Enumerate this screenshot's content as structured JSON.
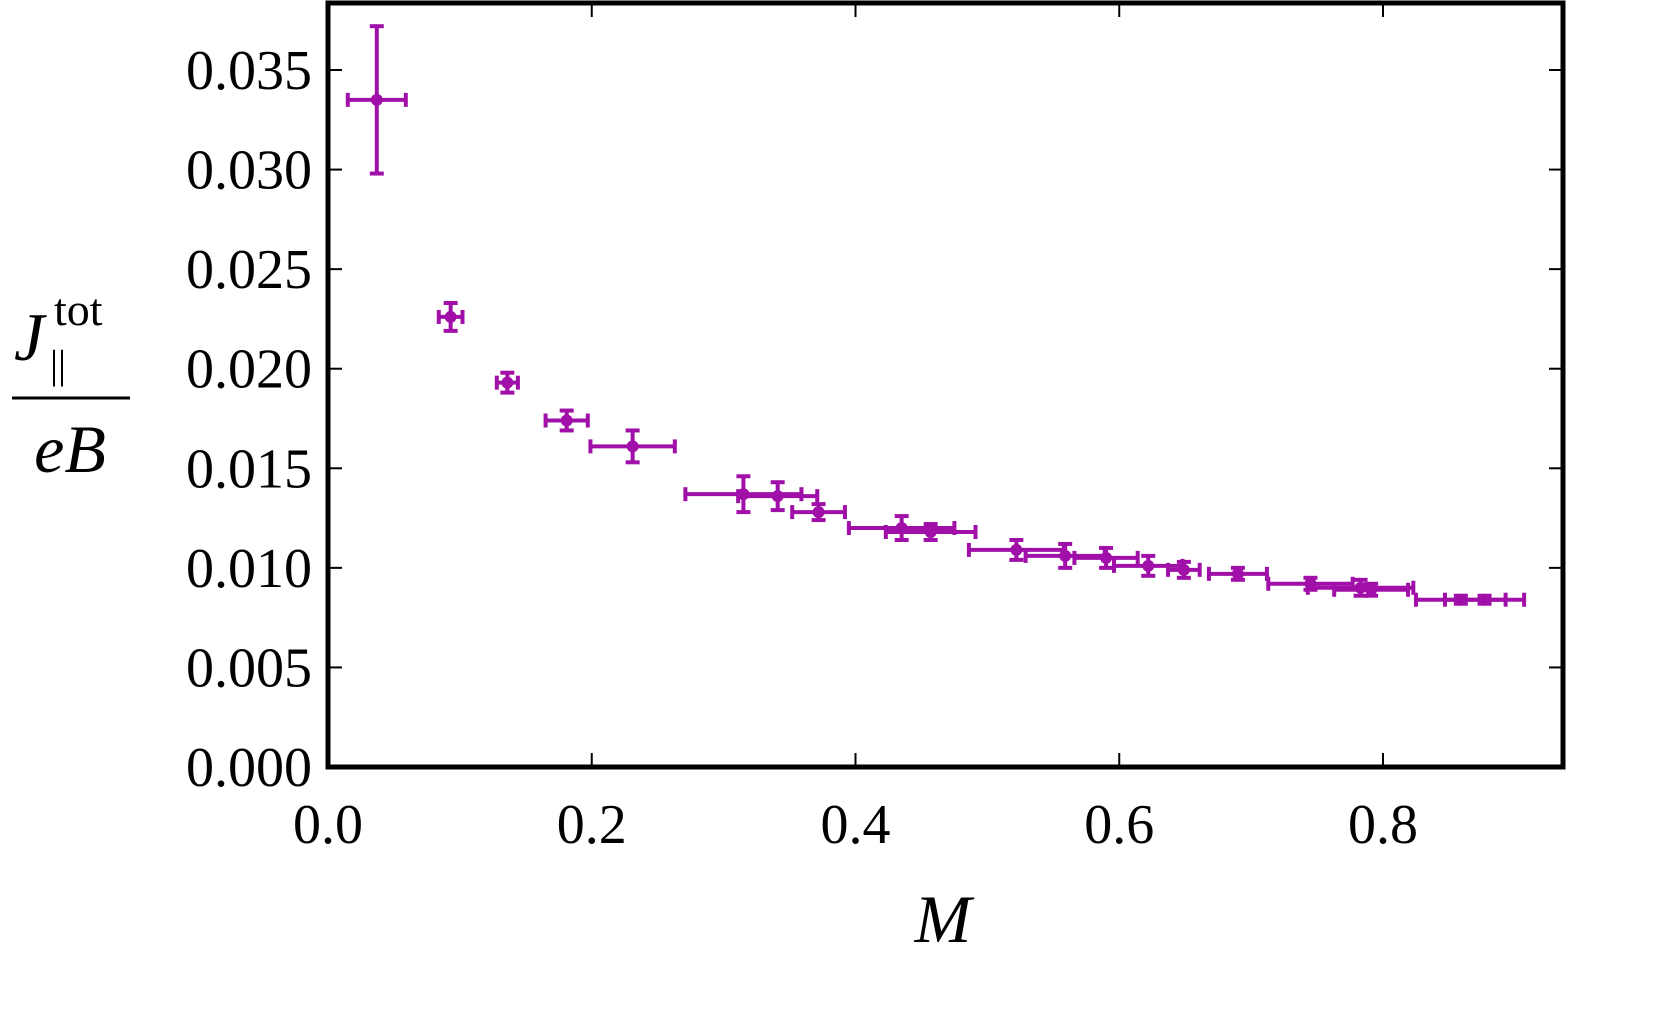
{
  "chart_data": {
    "type": "scatter",
    "title": "",
    "xlabel": "M",
    "ylabel": {
      "numerator_base": "J",
      "numerator_sup": "tot",
      "numerator_sub": "||",
      "denominator": "eB"
    },
    "xlim": [
      0.0,
      0.93
    ],
    "ylim": [
      0.0,
      0.038
    ],
    "x_ticks": [
      0.0,
      0.2,
      0.4,
      0.6,
      0.8
    ],
    "x_tick_labels": [
      "0.0",
      "0.2",
      "0.4",
      "0.6",
      "0.8"
    ],
    "y_ticks": [
      0.0,
      0.005,
      0.01,
      0.015,
      0.02,
      0.025,
      0.03,
      0.035
    ],
    "y_tick_labels": [
      "0.000",
      "0.005",
      "0.010",
      "0.015",
      "0.020",
      "0.025",
      "0.030",
      "0.035"
    ],
    "grid": false,
    "legend": "none",
    "color": "#a010a8",
    "series": [
      {
        "points": [
          {
            "x": 0.037,
            "y": 0.0335,
            "xerr": 0.022,
            "yerr": 0.0037
          },
          {
            "x": 0.093,
            "y": 0.0226,
            "xerr": 0.009,
            "yerr": 0.0007
          },
          {
            "x": 0.136,
            "y": 0.0193,
            "xerr": 0.008,
            "yerr": 0.0005
          },
          {
            "x": 0.181,
            "y": 0.0174,
            "xerr": 0.016,
            "yerr": 0.0005
          },
          {
            "x": 0.231,
            "y": 0.0161,
            "xerr": 0.032,
            "yerr": 0.0008
          },
          {
            "x": 0.315,
            "y": 0.0137,
            "xerr": 0.044,
            "yerr": 0.0009
          },
          {
            "x": 0.341,
            "y": 0.0136,
            "xerr": 0.03,
            "yerr": 0.0007
          },
          {
            "x": 0.372,
            "y": 0.0128,
            "xerr": 0.02,
            "yerr": 0.0004
          },
          {
            "x": 0.435,
            "y": 0.012,
            "xerr": 0.04,
            "yerr": 0.0006
          },
          {
            "x": 0.457,
            "y": 0.0118,
            "xerr": 0.034,
            "yerr": 0.0004
          },
          {
            "x": 0.522,
            "y": 0.0109,
            "xerr": 0.036,
            "yerr": 0.0005
          },
          {
            "x": 0.559,
            "y": 0.0106,
            "xerr": 0.03,
            "yerr": 0.0006
          },
          {
            "x": 0.59,
            "y": 0.0105,
            "xerr": 0.024,
            "yerr": 0.0005
          },
          {
            "x": 0.622,
            "y": 0.0101,
            "xerr": 0.026,
            "yerr": 0.0005
          },
          {
            "x": 0.649,
            "y": 0.0099,
            "xerr": 0.012,
            "yerr": 0.0004
          },
          {
            "x": 0.69,
            "y": 0.0097,
            "xerr": 0.022,
            "yerr": 0.0003
          },
          {
            "x": 0.745,
            "y": 0.0092,
            "xerr": 0.032,
            "yerr": 0.0003
          },
          {
            "x": 0.783,
            "y": 0.009,
            "xerr": 0.04,
            "yerr": 0.0004
          },
          {
            "x": 0.791,
            "y": 0.0089,
            "xerr": 0.028,
            "yerr": 0.0003
          },
          {
            "x": 0.859,
            "y": 0.0084,
            "xerr": 0.034,
            "yerr": 0.0002
          },
          {
            "x": 0.877,
            "y": 0.0084,
            "xerr": 0.03,
            "yerr": 0.0002
          }
        ]
      }
    ]
  }
}
